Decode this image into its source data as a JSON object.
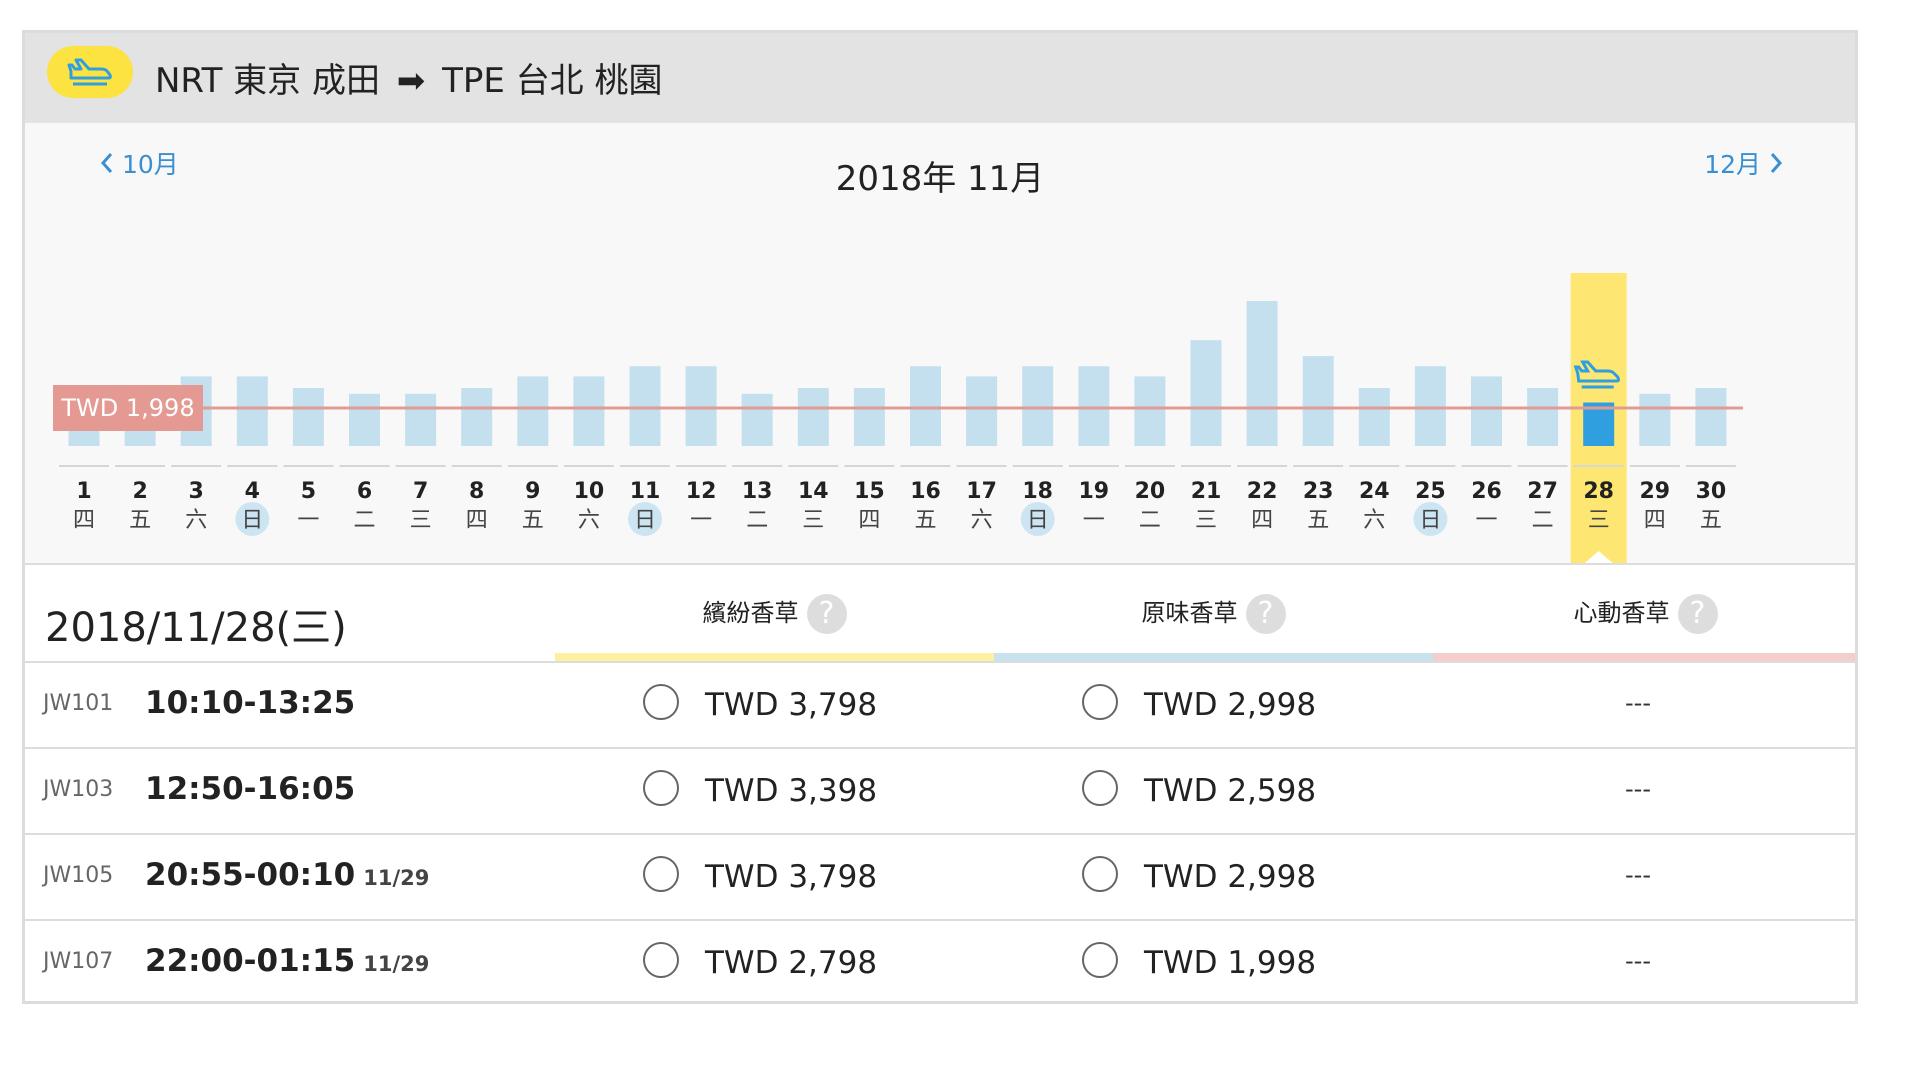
{
  "header": {
    "origin_code": "NRT",
    "origin_name": "東京 成田",
    "arrow": "➡",
    "dest_code": "TPE",
    "dest_name": "台北 桃園",
    "badge_icon": "plane-icon"
  },
  "calendar": {
    "prev_label": "10月",
    "next_label": "12月",
    "month_title": "2018年 11月",
    "lowest_price_label": "TWD 1,998",
    "selected_day": 28,
    "days": [
      {
        "day": "1",
        "weekday": "四",
        "level": 0.42
      },
      {
        "day": "2",
        "weekday": "五",
        "level": 0.42
      },
      {
        "day": "3",
        "weekday": "六",
        "level": 0.48
      },
      {
        "day": "4",
        "weekday": "日",
        "level": 0.48
      },
      {
        "day": "5",
        "weekday": "一",
        "level": 0.4
      },
      {
        "day": "6",
        "weekday": "二",
        "level": 0.36
      },
      {
        "day": "7",
        "weekday": "三",
        "level": 0.36
      },
      {
        "day": "8",
        "weekday": "四",
        "level": 0.4
      },
      {
        "day": "9",
        "weekday": "五",
        "level": 0.48
      },
      {
        "day": "10",
        "weekday": "六",
        "level": 0.48
      },
      {
        "day": "11",
        "weekday": "日",
        "level": 0.55
      },
      {
        "day": "12",
        "weekday": "一",
        "level": 0.55
      },
      {
        "day": "13",
        "weekday": "二",
        "level": 0.36
      },
      {
        "day": "14",
        "weekday": "三",
        "level": 0.4
      },
      {
        "day": "15",
        "weekday": "四",
        "level": 0.4
      },
      {
        "day": "16",
        "weekday": "五",
        "level": 0.55
      },
      {
        "day": "17",
        "weekday": "六",
        "level": 0.48
      },
      {
        "day": "18",
        "weekday": "日",
        "level": 0.55
      },
      {
        "day": "19",
        "weekday": "一",
        "level": 0.55
      },
      {
        "day": "20",
        "weekday": "二",
        "level": 0.48
      },
      {
        "day": "21",
        "weekday": "三",
        "level": 0.73
      },
      {
        "day": "22",
        "weekday": "四",
        "level": 1.0
      },
      {
        "day": "23",
        "weekday": "五",
        "level": 0.62
      },
      {
        "day": "24",
        "weekday": "六",
        "level": 0.4
      },
      {
        "day": "25",
        "weekday": "日",
        "level": 0.55
      },
      {
        "day": "26",
        "weekday": "一",
        "level": 0.48
      },
      {
        "day": "27",
        "weekday": "二",
        "level": 0.4
      },
      {
        "day": "28",
        "weekday": "三",
        "level": 0.3
      },
      {
        "day": "29",
        "weekday": "四",
        "level": 0.36
      },
      {
        "day": "30",
        "weekday": "五",
        "level": 0.4
      }
    ]
  },
  "detail": {
    "date": "2018/11/28(三)",
    "fare_types": [
      {
        "name": "繽紛香草",
        "color": "#fdf0a0"
      },
      {
        "name": "原味香草",
        "color": "#c8e2f0"
      },
      {
        "name": "心動香草",
        "color": "#f5cdca"
      }
    ],
    "help_symbol": "?",
    "flights": [
      {
        "no": "JW101",
        "time": "10:10-13:25",
        "next_day": "",
        "fare1": "TWD 3,798",
        "fare2": "TWD 2,998",
        "fare3": "---"
      },
      {
        "no": "JW103",
        "time": "12:50-16:05",
        "next_day": "",
        "fare1": "TWD 3,398",
        "fare2": "TWD 2,598",
        "fare3": "---"
      },
      {
        "no": "JW105",
        "time": "20:55-00:10",
        "next_day": "11/29",
        "fare1": "TWD 3,798",
        "fare2": "TWD 2,998",
        "fare3": "---"
      },
      {
        "no": "JW107",
        "time": "22:00-01:15",
        "next_day": "11/29",
        "fare1": "TWD 2,798",
        "fare2": "TWD 1,998",
        "fare3": "---"
      }
    ]
  }
}
